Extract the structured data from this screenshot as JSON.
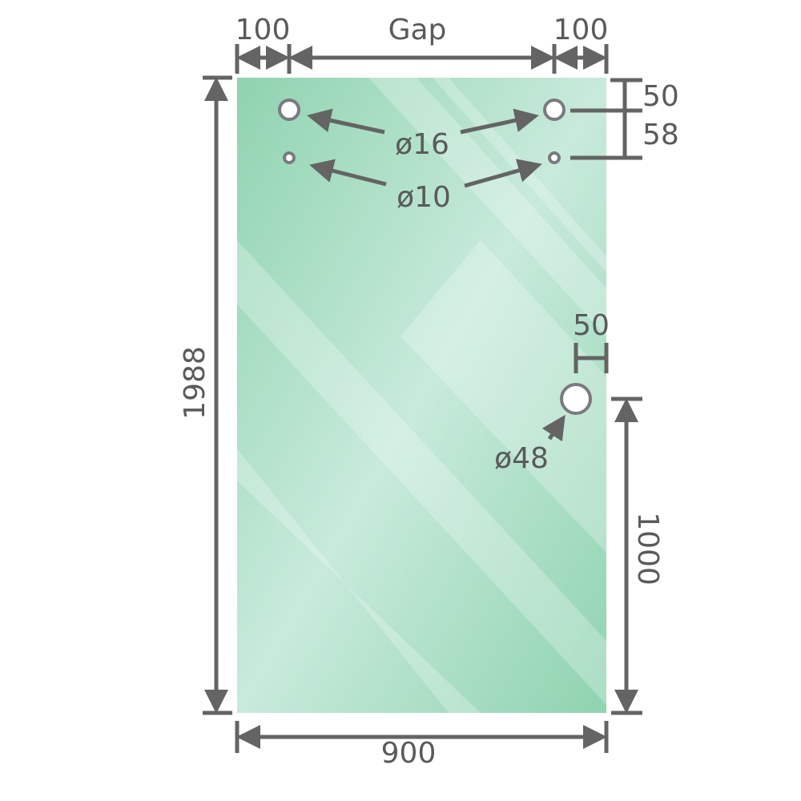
{
  "colors": {
    "glass_edge": "#8fd3b0",
    "glass_center": "#c8eadb",
    "dimension_line": "#646464",
    "label": "#5a5a5a"
  },
  "dimensions": {
    "left_offset": "100",
    "gap": "Gap",
    "right_offset": "100",
    "top_to_hole": "50",
    "hole_spacing": "58",
    "height": "1988",
    "width": "900",
    "handle_edge_offset": "50",
    "handle_height": "1000"
  },
  "holes": {
    "large_top": "ø16",
    "small_top": "ø10",
    "handle": "ø48"
  }
}
